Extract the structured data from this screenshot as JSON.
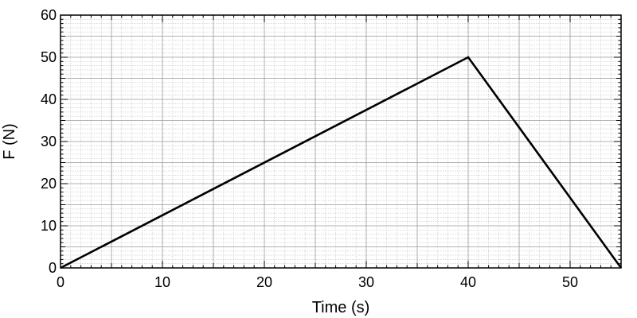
{
  "chart_data": {
    "type": "line",
    "title": "",
    "xlabel": "Time (s)",
    "ylabel": "F (N)",
    "xlim": [
      0,
      55
    ],
    "ylim": [
      0,
      60
    ],
    "x_ticks": [
      0,
      10,
      20,
      30,
      40,
      50
    ],
    "y_ticks": [
      0,
      10,
      20,
      30,
      40,
      50,
      60
    ],
    "grid": true,
    "series": [
      {
        "x": [
          0,
          40,
          55
        ],
        "y": [
          0,
          50,
          0
        ],
        "color": "#000000"
      }
    ]
  }
}
